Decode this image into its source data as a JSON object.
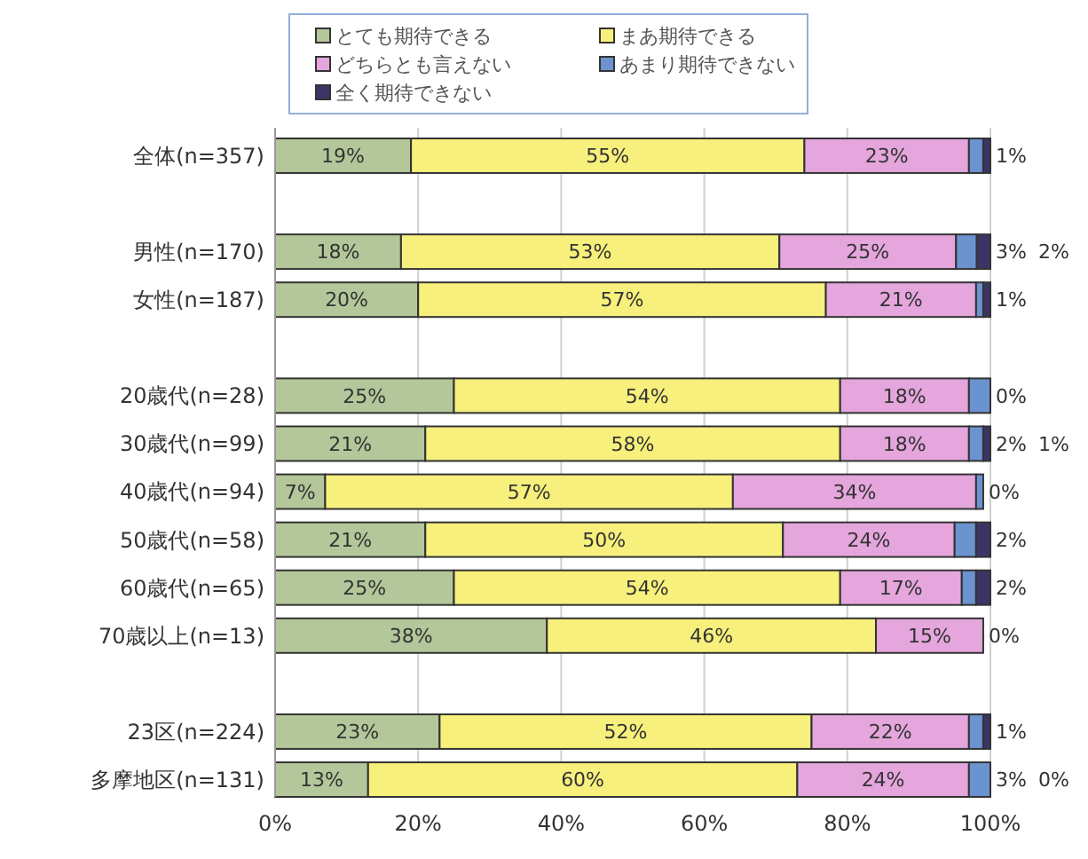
{
  "chart_data": {
    "type": "bar",
    "orientation": "horizontal",
    "stacked": true,
    "grid": "x",
    "legend": "top",
    "categories": [
      "全体(n=357)",
      null,
      "男性(n=170)",
      "女性(n=187)",
      null,
      "20歳代(n=28)",
      "30歳代(n=99)",
      "40歳代(n=94)",
      "50歳代(n=58)",
      "60歳代(n=65)",
      "70歳以上(n=13)",
      null,
      "23区(n=224)",
      "多摩地区(n=131)"
    ],
    "xlim": [
      0,
      100
    ],
    "xticks": [
      {
        "value": 0,
        "label": "0%"
      },
      {
        "value": 20,
        "label": "20%"
      },
      {
        "value": 40,
        "label": "40%"
      },
      {
        "value": 60,
        "label": "60%"
      },
      {
        "value": 80,
        "label": "80%"
      },
      {
        "value": 100,
        "label": "100%"
      }
    ],
    "series": [
      {
        "name": "とても期待できる",
        "color": "#b3c79a",
        "values": [
          19,
          null,
          17.6,
          20,
          null,
          25,
          21,
          7,
          21,
          25,
          38,
          null,
          23,
          13
        ],
        "value_labels": [
          "19%",
          null,
          "18%",
          "20%",
          null,
          "25%",
          "21%",
          "7%",
          "21%",
          "25%",
          "38%",
          null,
          "23%",
          "13%"
        ]
      },
      {
        "name": "まあ期待できる",
        "color": "#f7f07c",
        "values": [
          55,
          null,
          52.9,
          57,
          null,
          54,
          58,
          57,
          50,
          54,
          46,
          null,
          52,
          60
        ],
        "value_labels": [
          "55%",
          null,
          "53%",
          "57%",
          null,
          "54%",
          "58%",
          "57%",
          "50%",
          "54%",
          "46%",
          null,
          "52%",
          "60%"
        ]
      },
      {
        "name": "どちらとも言えない",
        "color": "#e4a6dc",
        "values": [
          23,
          null,
          24.7,
          21,
          null,
          18,
          18,
          34,
          24,
          17,
          15,
          null,
          22,
          24
        ],
        "value_labels": [
          "23%",
          null,
          "25%",
          "21%",
          null,
          "18%",
          "18%",
          "34%",
          "24%",
          "17%",
          "15%",
          null,
          "22%",
          "24%"
        ]
      },
      {
        "name": "あまり期待できない",
        "color": "#6b93cf",
        "values": [
          2,
          null,
          2.9,
          1,
          null,
          3,
          2,
          1,
          3,
          2,
          0,
          null,
          2,
          3
        ],
        "value_labels": [
          null,
          null,
          "3%",
          null,
          null,
          null,
          "2%",
          null,
          null,
          null,
          "0%",
          null,
          null,
          "3%"
        ]
      },
      {
        "name": "全く期待できない",
        "color": "#3b3566",
        "values": [
          1,
          null,
          1.9,
          1,
          null,
          0,
          1,
          0,
          2,
          2,
          0,
          null,
          1,
          0
        ],
        "value_labels": [
          "1%",
          null,
          "2%",
          "1%",
          null,
          "0%",
          "1%",
          "0%",
          "2%",
          "2%",
          null,
          null,
          "1%",
          "0%"
        ]
      }
    ]
  }
}
